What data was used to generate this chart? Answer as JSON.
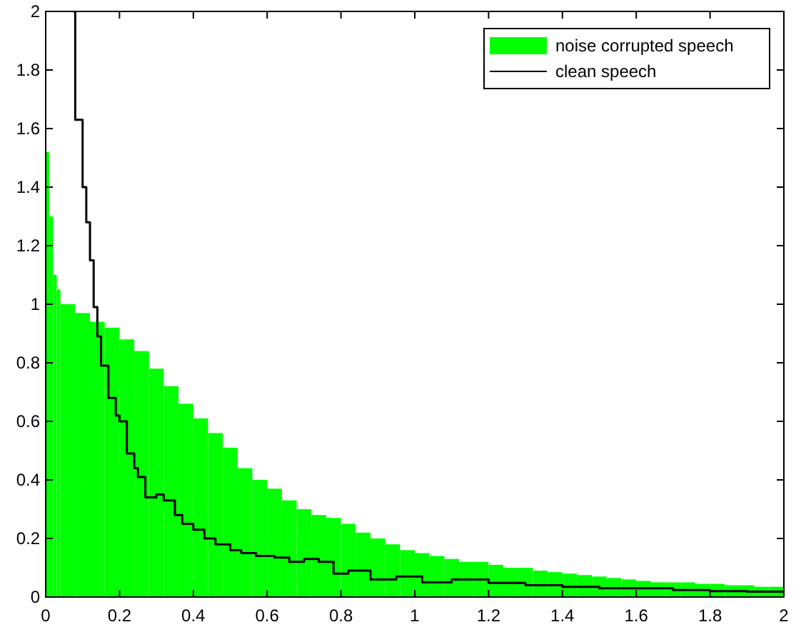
{
  "chart_data": {
    "type": "histogram",
    "xlim": [
      0,
      2
    ],
    "ylim": [
      0,
      2
    ],
    "xticks": [
      0,
      0.2,
      0.4,
      0.6,
      0.8,
      1,
      1.2,
      1.4,
      1.6,
      1.8,
      2
    ],
    "yticks": [
      0,
      0.2,
      0.4,
      0.6,
      0.8,
      1,
      1.2,
      1.4,
      1.6,
      1.8,
      2
    ],
    "grid": false,
    "legend": "top right",
    "series": [
      {
        "name": "noise corrupted speech",
        "color": "#00ff00",
        "bins": [
          0,
          0.01,
          0.02,
          0.03,
          0.04,
          0.08,
          0.12,
          0.16,
          0.2,
          0.24,
          0.28,
          0.32,
          0.36,
          0.4,
          0.44,
          0.48,
          0.52,
          0.56,
          0.6,
          0.64,
          0.68,
          0.72,
          0.76,
          0.8,
          0.84,
          0.88,
          0.92,
          0.96,
          1,
          1.04,
          1.08,
          1.12,
          1.16,
          1.2,
          1.24,
          1.28,
          1.32,
          1.36,
          1.4,
          1.44,
          1.48,
          1.52,
          1.56,
          1.6,
          1.64,
          1.68,
          1.72,
          1.76,
          1.8,
          1.84,
          1.88,
          1.92,
          1.96,
          2
        ],
        "values": [
          1.52,
          1.3,
          1.1,
          1.05,
          1.0,
          0.97,
          0.94,
          0.92,
          0.88,
          0.84,
          0.78,
          0.72,
          0.66,
          0.61,
          0.56,
          0.51,
          0.44,
          0.4,
          0.37,
          0.33,
          0.3,
          0.28,
          0.27,
          0.25,
          0.22,
          0.2,
          0.18,
          0.16,
          0.15,
          0.14,
          0.13,
          0.12,
          0.12,
          0.11,
          0.1,
          0.1,
          0.09,
          0.085,
          0.08,
          0.075,
          0.07,
          0.065,
          0.06,
          0.055,
          0.05,
          0.05,
          0.05,
          0.045,
          0.045,
          0.04,
          0.04,
          0.035,
          0.035
        ]
      },
      {
        "name": "clean speech",
        "type": "step",
        "color": "#000000",
        "x": [
          0.075,
          0.08,
          0.1,
          0.11,
          0.12,
          0.13,
          0.14,
          0.15,
          0.17,
          0.19,
          0.2,
          0.22,
          0.24,
          0.25,
          0.27,
          0.3,
          0.32,
          0.35,
          0.37,
          0.4,
          0.43,
          0.46,
          0.5,
          0.53,
          0.57,
          0.62,
          0.66,
          0.7,
          0.74,
          0.78,
          0.82,
          0.88,
          0.95,
          1.02,
          1.1,
          1.2,
          1.3,
          1.4,
          1.5,
          1.6,
          1.7,
          1.8,
          1.9,
          2
        ],
        "values": [
          2,
          1.63,
          1.4,
          1.28,
          1.15,
          0.99,
          0.89,
          0.79,
          0.68,
          0.62,
          0.6,
          0.49,
          0.44,
          0.41,
          0.34,
          0.35,
          0.33,
          0.28,
          0.25,
          0.23,
          0.2,
          0.18,
          0.16,
          0.15,
          0.14,
          0.135,
          0.12,
          0.13,
          0.12,
          0.08,
          0.09,
          0.06,
          0.07,
          0.05,
          0.06,
          0.048,
          0.04,
          0.035,
          0.03,
          0.03,
          0.024,
          0.02,
          0.018,
          0.015
        ]
      }
    ]
  }
}
